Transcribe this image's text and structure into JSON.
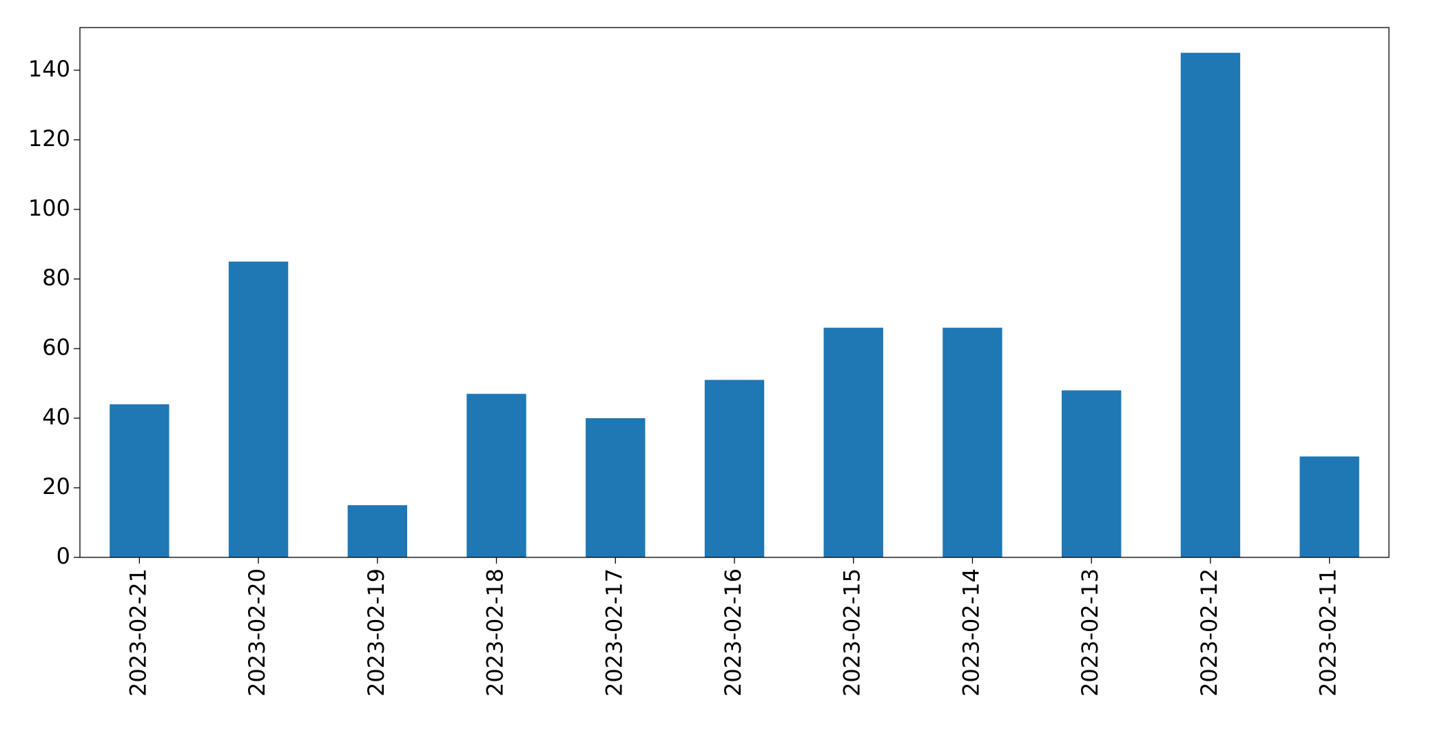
{
  "chart_data": {
    "type": "bar",
    "categories": [
      "2023-02-21",
      "2023-02-20",
      "2023-02-19",
      "2023-02-18",
      "2023-02-17",
      "2023-02-16",
      "2023-02-15",
      "2023-02-14",
      "2023-02-13",
      "2023-02-12",
      "2023-02-11"
    ],
    "values": [
      44,
      85,
      15,
      47,
      40,
      51,
      66,
      66,
      48,
      145,
      29
    ],
    "color": "#1f77b4",
    "ylim": [
      0,
      152.25
    ],
    "yticks": [
      0,
      20,
      40,
      60,
      80,
      100,
      120,
      140
    ],
    "grid": false
  }
}
